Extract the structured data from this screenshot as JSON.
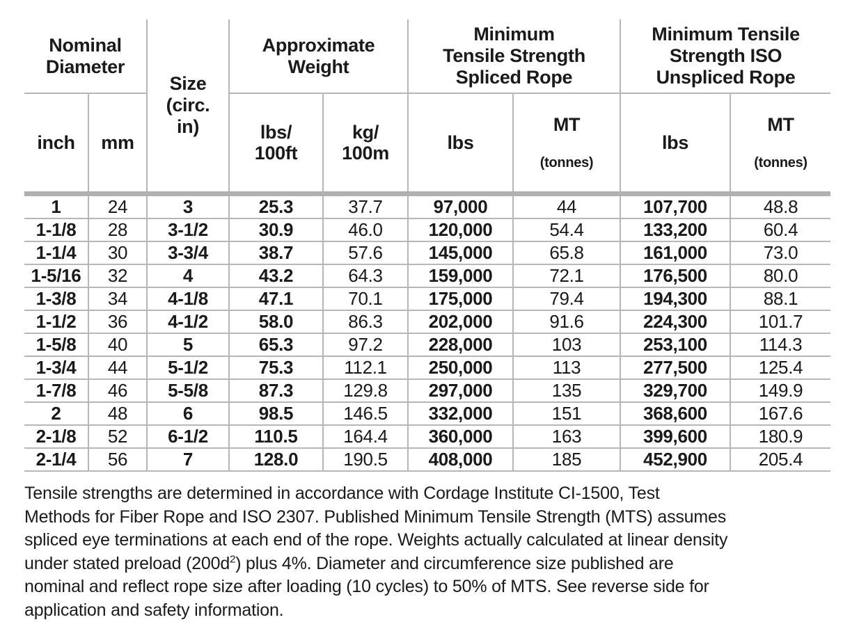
{
  "table": {
    "header": {
      "groups": {
        "nominal_diameter": [
          "Nominal",
          "Diameter"
        ],
        "size": [
          "Size",
          "(circ.",
          "in)"
        ],
        "approximate_weight": [
          "Approximate",
          "Weight"
        ],
        "mts_spliced": [
          "Minimum",
          "Tensile Strength",
          "Spliced Rope"
        ],
        "mts_iso_unspliced": [
          "Minimum Tensile",
          "Strength ISO",
          "Unspliced Rope"
        ]
      },
      "subheaders": {
        "inch": "inch",
        "mm": "mm",
        "lbs_100ft": [
          "lbs/",
          "100ft"
        ],
        "kg_100m": [
          "kg/",
          "100m"
        ],
        "spliced_lbs": "lbs",
        "spliced_mt": "MT",
        "spliced_mt_unit": "(tonnes)",
        "iso_lbs": "lbs",
        "iso_mt": "MT",
        "iso_mt_unit": "(tonnes)"
      }
    },
    "columns": [
      "inch",
      "mm",
      "size_circ_in",
      "lbs_per_100ft",
      "kg_per_100m",
      "spliced_lbs",
      "spliced_mt_tonnes",
      "iso_lbs",
      "iso_mt_tonnes"
    ],
    "rows": [
      [
        "1",
        "24",
        "3",
        "25.3",
        "37.7",
        "97,000",
        "44",
        "107,700",
        "48.8"
      ],
      [
        "1-1/8",
        "28",
        "3-1/2",
        "30.9",
        "46.0",
        "120,000",
        "54.4",
        "133,200",
        "60.4"
      ],
      [
        "1-1/4",
        "30",
        "3-3/4",
        "38.7",
        "57.6",
        "145,000",
        "65.8",
        "161,000",
        "73.0"
      ],
      [
        "1-5/16",
        "32",
        "4",
        "43.2",
        "64.3",
        "159,000",
        "72.1",
        "176,500",
        "80.0"
      ],
      [
        "1-3/8",
        "34",
        "4-1/8",
        "47.1",
        "70.1",
        "175,000",
        "79.4",
        "194,300",
        "88.1"
      ],
      [
        "1-1/2",
        "36",
        "4-1/2",
        "58.0",
        "86.3",
        "202,000",
        "91.6",
        "224,300",
        "101.7"
      ],
      [
        "1-5/8",
        "40",
        "5",
        "65.3",
        "97.2",
        "228,000",
        "103",
        "253,100",
        "114.3"
      ],
      [
        "1-3/4",
        "44",
        "5-1/2",
        "75.3",
        "112.1",
        "250,000",
        "113",
        "277,500",
        "125.4"
      ],
      [
        "1-7/8",
        "46",
        "5-5/8",
        "87.3",
        "129.8",
        "297,000",
        "135",
        "329,700",
        "149.9"
      ],
      [
        "2",
        "48",
        "6",
        "98.5",
        "146.5",
        "332,000",
        "151",
        "368,600",
        "167.6"
      ],
      [
        "2-1/8",
        "52",
        "6-1/2",
        "110.5",
        "164.4",
        "360,000",
        "163",
        "399,600",
        "180.9"
      ],
      [
        "2-1/4",
        "56",
        "7",
        "128.0",
        "190.5",
        "408,000",
        "185",
        "452,900",
        "205.4"
      ]
    ]
  },
  "footnote": {
    "lines": [
      "Tensile strengths are determined in accordance with Cordage Institute CI-1500, Test",
      "Methods for Fiber Rope and ISO 2307. Published Minimum Tensile Strength (MTS) assumes",
      "spliced eye terminations at each end of the rope. Weights actually calculated at linear density",
      "under stated preload (200d^2) plus 4%. Diameter and circumference size published are",
      "nominal and reflect rope size after loading (10 cycles) to 50% of MTS. See reverse side for",
      "application and safety information."
    ]
  },
  "colors": {
    "text": "#1a1a1a",
    "grid_line": "#b4b6b8",
    "header_bar": "#aeb0b2",
    "background": "#ffffff"
  }
}
